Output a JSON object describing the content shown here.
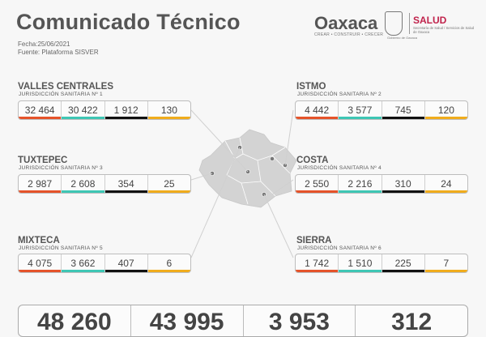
{
  "header": {
    "title": "Comunicado Técnico",
    "date": "Fecha:25/06/2021",
    "source": "Fuente: Plataforma SISVER"
  },
  "logos": {
    "oaxaca_name": "Oaxaca",
    "oaxaca_tagline": "CREAR • CONSTRUIR • CRECER",
    "crest_caption": "Gobierno de Oaxaca",
    "salud_title": "SALUD",
    "salud_subtitle": "Secretaría de Salud / Servicios de Salud de Oaxaca"
  },
  "colors": {
    "bar_1": "#e5532a",
    "bar_2": "#3ec6b4",
    "bar_3": "#111111",
    "bar_4": "#f0ac1c"
  },
  "regions": [
    {
      "name": "VALLES CENTRALES",
      "jurisdiction": "JURISDICCIÓN SANITARIA Nº 1",
      "values": [
        "32 464",
        "30 422",
        "1 912",
        "130"
      ]
    },
    {
      "name": "ISTMO",
      "jurisdiction": "JURISDICCIÓN SANITARIA Nº 2",
      "values": [
        "4 442",
        "3 577",
        "745",
        "120"
      ]
    },
    {
      "name": "TUXTEPEC",
      "jurisdiction": "JURISDICCIÓN SANITARIA Nº 3",
      "values": [
        "2 987",
        "2 608",
        "354",
        "25"
      ]
    },
    {
      "name": "COSTA",
      "jurisdiction": "JURISDICCIÓN SANITARIA Nº 4",
      "values": [
        "2 550",
        "2 216",
        "310",
        "24"
      ]
    },
    {
      "name": "MIXTECA",
      "jurisdiction": "JURISDICCIÓN SANITARIA Nº 5",
      "values": [
        "4 075",
        "3 662",
        "407",
        "6"
      ]
    },
    {
      "name": "SIERRA",
      "jurisdiction": "JURISDICCIÓN SANITARIA Nº 6",
      "values": [
        "1 742",
        "1 510",
        "225",
        "7"
      ]
    }
  ],
  "totals": [
    "48 260",
    "43 995",
    "3 953",
    "312"
  ]
}
